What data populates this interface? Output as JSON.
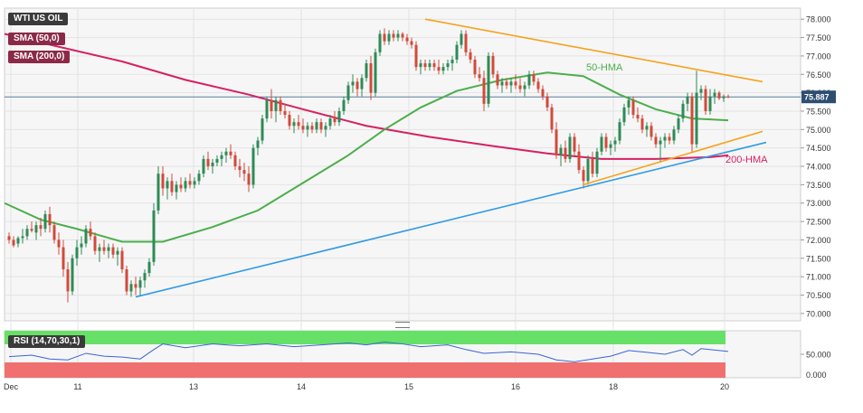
{
  "legend": {
    "symbol": "WTI US OIL",
    "sma_fast": "SMA (50,0)",
    "sma_slow": "SMA (200,0)",
    "rsi": "RSI (14,70,30,1)"
  },
  "colors": {
    "up": "#2e8b57",
    "down": "#d14a3c",
    "hma50": "#4cae4c",
    "hma200": "#d62062",
    "resistance": "#f7a21b",
    "support_blue": "#2f9be6",
    "support_orange": "#f7a21b",
    "current_line": "#5a7ca0",
    "rsi_over": "#66e066",
    "rsi_under": "#f07070",
    "rsi_line": "#3a63d6"
  },
  "chart_data": {
    "type": "candlestick",
    "y_ticks": [
      "78.000",
      "77.500",
      "77.000",
      "76.500",
      "76.000",
      "75.500",
      "75.000",
      "74.500",
      "74.000",
      "73.500",
      "73.000",
      "72.500",
      "72.000",
      "71.500",
      "71.000",
      "70.500",
      "70.000"
    ],
    "ylim": [
      69.8,
      78.3
    ],
    "x_ticks": [
      "Dec",
      "11",
      "13",
      "14",
      "15",
      "16",
      "18",
      "20"
    ],
    "current_price": "75.887",
    "annotations": {
      "hma50_label": "50-HMA",
      "hma200_label": "200-HMA"
    },
    "hma50": [
      [
        0,
        73.0
      ],
      [
        40,
        72.55
      ],
      [
        80,
        72.3
      ],
      [
        130,
        71.95
      ],
      [
        175,
        71.95
      ],
      [
        230,
        72.35
      ],
      [
        280,
        72.8
      ],
      [
        330,
        73.55
      ],
      [
        380,
        74.3
      ],
      [
        420,
        75.0
      ],
      [
        460,
        75.6
      ],
      [
        500,
        76.05
      ],
      [
        550,
        76.35
      ],
      [
        600,
        76.55
      ],
      [
        640,
        76.45
      ],
      [
        680,
        75.95
      ],
      [
        720,
        75.55
      ],
      [
        760,
        75.3
      ],
      [
        800,
        75.25
      ]
    ],
    "hma200": [
      [
        0,
        77.6
      ],
      [
        60,
        77.25
      ],
      [
        130,
        76.85
      ],
      [
        200,
        76.35
      ],
      [
        270,
        75.95
      ],
      [
        330,
        75.55
      ],
      [
        400,
        75.1
      ],
      [
        470,
        74.8
      ],
      [
        540,
        74.55
      ],
      [
        600,
        74.35
      ],
      [
        660,
        74.2
      ],
      [
        720,
        74.2
      ],
      [
        780,
        74.25
      ],
      [
        800,
        74.3
      ]
    ],
    "resistance_line": [
      [
        465,
        78.0
      ],
      [
        838,
        76.3
      ]
    ],
    "support_line_blue": [
      [
        145,
        70.45
      ],
      [
        842,
        74.65
      ]
    ],
    "support_line_orange": [
      [
        640,
        73.5
      ],
      [
        838,
        74.95
      ]
    ],
    "candles": [
      [
        5,
        72.1,
        72.2,
        71.9,
        72.0
      ],
      [
        10,
        72.0,
        72.1,
        71.8,
        71.85
      ],
      [
        15,
        71.9,
        72.1,
        71.8,
        72.05
      ],
      [
        20,
        72.05,
        72.3,
        71.9,
        72.1
      ],
      [
        25,
        72.1,
        72.4,
        72.0,
        72.3
      ],
      [
        30,
        72.3,
        72.5,
        72.2,
        72.25
      ],
      [
        35,
        72.2,
        72.5,
        72.0,
        72.4
      ],
      [
        40,
        72.4,
        72.6,
        72.1,
        72.3
      ],
      [
        45,
        72.3,
        72.8,
        72.2,
        72.7
      ],
      [
        50,
        72.7,
        72.9,
        72.2,
        72.4
      ],
      [
        55,
        72.4,
        72.5,
        71.9,
        72.0
      ],
      [
        60,
        72.0,
        72.2,
        71.6,
        71.8
      ],
      [
        65,
        71.8,
        72.0,
        71.0,
        71.2
      ],
      [
        70,
        71.2,
        71.4,
        70.3,
        70.6
      ],
      [
        75,
        70.6,
        71.6,
        70.5,
        71.5
      ],
      [
        80,
        71.5,
        72.0,
        71.3,
        71.8
      ],
      [
        85,
        71.8,
        72.1,
        71.6,
        71.9
      ],
      [
        90,
        71.9,
        72.4,
        71.8,
        72.3
      ],
      [
        95,
        72.3,
        72.5,
        72.0,
        72.1
      ],
      [
        100,
        72.1,
        72.2,
        71.6,
        71.7
      ],
      [
        105,
        71.7,
        71.9,
        71.4,
        71.8
      ],
      [
        110,
        71.8,
        72.0,
        71.6,
        71.7
      ],
      [
        115,
        71.7,
        71.9,
        71.5,
        71.8
      ],
      [
        120,
        71.8,
        71.9,
        71.5,
        71.6
      ],
      [
        125,
        71.6,
        71.8,
        71.3,
        71.7
      ],
      [
        130,
        71.7,
        71.8,
        71.1,
        71.2
      ],
      [
        135,
        71.2,
        71.3,
        70.5,
        70.6
      ],
      [
        140,
        70.6,
        70.9,
        70.45,
        70.8
      ],
      [
        145,
        70.8,
        71.0,
        70.5,
        70.7
      ],
      [
        150,
        70.7,
        71.0,
        70.5,
        70.9
      ],
      [
        155,
        70.9,
        71.2,
        70.7,
        71.1
      ],
      [
        160,
        71.1,
        71.5,
        71.0,
        71.4
      ],
      [
        165,
        71.4,
        73.0,
        71.3,
        72.8
      ],
      [
        170,
        72.8,
        74.0,
        72.7,
        73.8
      ],
      [
        175,
        73.8,
        74.0,
        73.2,
        73.4
      ],
      [
        180,
        73.4,
        73.7,
        73.1,
        73.6
      ],
      [
        185,
        73.6,
        73.8,
        73.2,
        73.3
      ],
      [
        190,
        73.3,
        73.6,
        73.1,
        73.5
      ],
      [
        195,
        73.5,
        73.7,
        73.3,
        73.4
      ],
      [
        200,
        73.4,
        73.7,
        73.3,
        73.6
      ],
      [
        205,
        73.6,
        73.8,
        73.4,
        73.5
      ],
      [
        210,
        73.5,
        73.7,
        73.4,
        73.6
      ],
      [
        215,
        73.6,
        73.9,
        73.5,
        73.8
      ],
      [
        220,
        73.8,
        74.3,
        73.7,
        74.2
      ],
      [
        225,
        74.2,
        74.4,
        73.9,
        74.0
      ],
      [
        230,
        74.0,
        74.2,
        73.8,
        74.1
      ],
      [
        235,
        74.1,
        74.3,
        74.0,
        74.2
      ],
      [
        240,
        74.2,
        74.4,
        74.0,
        74.3
      ],
      [
        245,
        74.3,
        74.5,
        74.1,
        74.4
      ],
      [
        250,
        74.4,
        74.6,
        74.2,
        74.3
      ],
      [
        255,
        74.3,
        74.4,
        73.9,
        74.0
      ],
      [
        260,
        74.0,
        74.2,
        73.7,
        73.9
      ],
      [
        265,
        73.9,
        74.1,
        73.6,
        73.8
      ],
      [
        270,
        73.8,
        74.0,
        73.3,
        73.5
      ],
      [
        275,
        73.5,
        74.6,
        73.4,
        74.5
      ],
      [
        280,
        74.5,
        74.8,
        74.3,
        74.7
      ],
      [
        285,
        74.7,
        75.4,
        74.6,
        75.3
      ],
      [
        290,
        75.3,
        75.9,
        75.2,
        75.8
      ],
      [
        295,
        75.8,
        76.1,
        75.3,
        75.5
      ],
      [
        300,
        75.5,
        75.9,
        75.2,
        75.8
      ],
      [
        305,
        75.8,
        75.9,
        75.4,
        75.5
      ],
      [
        310,
        75.5,
        75.7,
        75.3,
        75.4
      ],
      [
        315,
        75.4,
        75.5,
        75.0,
        75.1
      ],
      [
        320,
        75.1,
        75.3,
        74.9,
        75.2
      ],
      [
        325,
        75.2,
        75.4,
        75.0,
        75.1
      ],
      [
        330,
        75.1,
        75.3,
        74.9,
        75.0
      ],
      [
        335,
        75.0,
        75.2,
        74.8,
        75.1
      ],
      [
        340,
        75.1,
        75.2,
        74.9,
        75.0
      ],
      [
        345,
        75.0,
        75.3,
        74.9,
        75.2
      ],
      [
        350,
        75.2,
        75.3,
        74.9,
        75.0
      ],
      [
        355,
        75.0,
        75.2,
        74.8,
        75.1
      ],
      [
        360,
        75.1,
        75.4,
        75.0,
        75.3
      ],
      [
        365,
        75.3,
        75.5,
        75.1,
        75.2
      ],
      [
        370,
        75.2,
        75.6,
        75.1,
        75.5
      ],
      [
        375,
        75.5,
        75.9,
        75.4,
        75.8
      ],
      [
        380,
        75.8,
        76.3,
        75.7,
        76.2
      ],
      [
        385,
        76.2,
        76.5,
        76.0,
        76.3
      ],
      [
        390,
        76.3,
        76.4,
        75.9,
        76.1
      ],
      [
        395,
        76.1,
        76.5,
        75.9,
        76.4
      ],
      [
        400,
        76.4,
        76.9,
        76.3,
        76.8
      ],
      [
        405,
        76.8,
        77.0,
        75.8,
        76.0
      ],
      [
        410,
        76.0,
        77.2,
        75.9,
        77.1
      ],
      [
        415,
        77.1,
        77.7,
        77.0,
        77.6
      ],
      [
        420,
        77.6,
        77.75,
        77.3,
        77.4
      ],
      [
        425,
        77.4,
        77.7,
        77.3,
        77.6
      ],
      [
        430,
        77.6,
        77.7,
        77.4,
        77.5
      ],
      [
        435,
        77.5,
        77.7,
        77.4,
        77.6
      ],
      [
        440,
        77.6,
        77.65,
        77.4,
        77.5
      ],
      [
        445,
        77.5,
        77.6,
        77.3,
        77.4
      ],
      [
        450,
        77.4,
        77.5,
        77.2,
        77.3
      ],
      [
        455,
        77.3,
        77.4,
        76.6,
        76.7
      ],
      [
        460,
        76.7,
        76.9,
        76.5,
        76.8
      ],
      [
        465,
        76.8,
        76.9,
        76.6,
        76.7
      ],
      [
        470,
        76.7,
        76.9,
        76.6,
        76.8
      ],
      [
        475,
        76.8,
        76.9,
        76.6,
        76.7
      ],
      [
        480,
        76.7,
        76.9,
        76.5,
        76.6
      ],
      [
        485,
        76.6,
        76.8,
        76.5,
        76.7
      ],
      [
        490,
        76.7,
        76.9,
        76.6,
        76.8
      ],
      [
        495,
        76.8,
        77.0,
        76.6,
        76.9
      ],
      [
        500,
        76.9,
        77.4,
        76.8,
        77.3
      ],
      [
        505,
        77.3,
        77.7,
        77.2,
        77.6
      ],
      [
        510,
        77.6,
        77.7,
        77.0,
        77.1
      ],
      [
        515,
        77.1,
        77.2,
        76.8,
        76.9
      ],
      [
        520,
        76.9,
        77.0,
        76.4,
        76.5
      ],
      [
        525,
        76.5,
        76.7,
        76.3,
        76.4
      ],
      [
        530,
        76.4,
        76.6,
        75.5,
        75.7
      ],
      [
        535,
        75.7,
        77.1,
        75.6,
        77.0
      ],
      [
        540,
        77.0,
        77.1,
        76.4,
        76.5
      ],
      [
        545,
        76.5,
        76.6,
        76.1,
        76.2
      ],
      [
        550,
        76.2,
        76.4,
        76.0,
        76.3
      ],
      [
        555,
        76.3,
        76.4,
        76.1,
        76.2
      ],
      [
        560,
        76.2,
        76.4,
        76.0,
        76.3
      ],
      [
        565,
        76.3,
        76.5,
        76.1,
        76.2
      ],
      [
        570,
        76.2,
        76.4,
        76.0,
        76.1
      ],
      [
        575,
        76.1,
        76.3,
        75.9,
        76.2
      ],
      [
        580,
        76.2,
        76.6,
        76.1,
        76.5
      ],
      [
        585,
        76.5,
        76.6,
        76.2,
        76.3
      ],
      [
        590,
        76.3,
        76.4,
        76.0,
        76.1
      ],
      [
        595,
        76.1,
        76.2,
        75.8,
        75.9
      ],
      [
        600,
        75.9,
        76.0,
        75.5,
        75.6
      ],
      [
        605,
        75.6,
        75.7,
        74.9,
        75.0
      ],
      [
        610,
        75.0,
        75.2,
        74.2,
        74.3
      ],
      [
        615,
        74.3,
        74.6,
        74.0,
        74.5
      ],
      [
        620,
        74.5,
        74.7,
        74.1,
        74.2
      ],
      [
        625,
        74.2,
        74.9,
        74.1,
        74.8
      ],
      [
        630,
        74.8,
        74.9,
        74.3,
        74.4
      ],
      [
        635,
        74.4,
        74.6,
        73.8,
        73.9
      ],
      [
        640,
        73.9,
        74.0,
        73.4,
        73.6
      ],
      [
        645,
        73.6,
        74.3,
        73.5,
        74.2
      ],
      [
        650,
        74.2,
        74.4,
        73.7,
        73.8
      ],
      [
        655,
        73.8,
        74.5,
        73.7,
        74.4
      ],
      [
        660,
        74.4,
        74.9,
        74.3,
        74.8
      ],
      [
        665,
        74.8,
        74.9,
        74.4,
        74.5
      ],
      [
        670,
        74.5,
        74.7,
        74.3,
        74.6
      ],
      [
        675,
        74.6,
        74.8,
        74.4,
        74.7
      ],
      [
        680,
        74.7,
        75.3,
        74.6,
        75.2
      ],
      [
        685,
        75.2,
        75.7,
        75.1,
        75.6
      ],
      [
        690,
        75.6,
        75.9,
        75.4,
        75.8
      ],
      [
        695,
        75.8,
        75.9,
        75.3,
        75.4
      ],
      [
        700,
        75.4,
        75.6,
        75.2,
        75.3
      ],
      [
        705,
        75.3,
        75.4,
        74.9,
        75.0
      ],
      [
        710,
        75.0,
        75.2,
        74.8,
        75.1
      ],
      [
        715,
        75.1,
        75.2,
        74.7,
        74.8
      ],
      [
        720,
        74.8,
        74.9,
        74.5,
        74.6
      ],
      [
        725,
        74.6,
        74.8,
        74.1,
        74.7
      ],
      [
        730,
        74.7,
        74.9,
        74.5,
        74.8
      ],
      [
        735,
        74.8,
        74.9,
        74.6,
        74.7
      ],
      [
        740,
        74.7,
        75.1,
        74.6,
        75.0
      ],
      [
        745,
        75.0,
        75.4,
        74.9,
        75.3
      ],
      [
        750,
        75.3,
        75.8,
        75.2,
        75.7
      ],
      [
        755,
        75.7,
        76.0,
        75.5,
        75.9
      ],
      [
        760,
        75.9,
        76.0,
        74.4,
        74.6
      ],
      [
        765,
        74.6,
        76.6,
        74.5,
        76.0
      ],
      [
        770,
        76.0,
        76.2,
        75.8,
        76.1
      ],
      [
        775,
        76.1,
        76.2,
        75.4,
        75.5
      ],
      [
        780,
        75.5,
        76.1,
        75.4,
        75.9
      ],
      [
        785,
        75.9,
        76.1,
        75.7,
        76.0
      ],
      [
        790,
        76.0,
        76.05,
        75.8,
        75.85
      ],
      [
        795,
        75.85,
        75.95,
        75.75,
        75.9
      ],
      [
        800,
        75.9,
        75.95,
        75.85,
        75.887
      ]
    ],
    "rsi": {
      "ticks": [
        "50.000",
        "0.000"
      ],
      "levels": [
        30,
        70
      ],
      "values": [
        [
          5,
          45
        ],
        [
          30,
          48
        ],
        [
          50,
          40
        ],
        [
          70,
          38
        ],
        [
          90,
          52
        ],
        [
          110,
          46
        ],
        [
          130,
          44
        ],
        [
          150,
          40
        ],
        [
          165,
          60
        ],
        [
          175,
          72
        ],
        [
          200,
          64
        ],
        [
          230,
          72
        ],
        [
          260,
          68
        ],
        [
          290,
          72
        ],
        [
          320,
          66
        ],
        [
          350,
          70
        ],
        [
          380,
          74
        ],
        [
          400,
          70
        ],
        [
          420,
          76
        ],
        [
          440,
          72
        ],
        [
          460,
          66
        ],
        [
          490,
          70
        ],
        [
          510,
          60
        ],
        [
          530,
          52
        ],
        [
          560,
          55
        ],
        [
          590,
          50
        ],
        [
          610,
          38
        ],
        [
          630,
          34
        ],
        [
          650,
          40
        ],
        [
          670,
          46
        ],
        [
          690,
          58
        ],
        [
          710,
          54
        ],
        [
          730,
          50
        ],
        [
          750,
          60
        ],
        [
          760,
          48
        ],
        [
          770,
          62
        ],
        [
          800,
          56
        ]
      ]
    }
  }
}
